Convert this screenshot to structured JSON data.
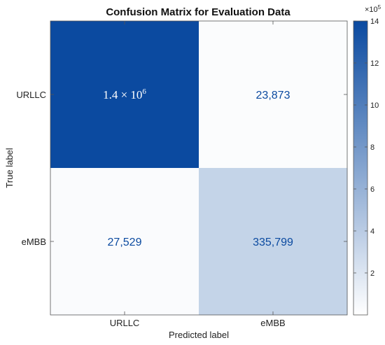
{
  "chart_data": {
    "type": "heatmap",
    "title": "Confusion Matrix for Evaluation Data",
    "xlabel": "Predicted label",
    "ylabel": "True label",
    "x_categories": [
      "URLLC",
      "eMBB"
    ],
    "y_categories": [
      "URLLC",
      "eMBB"
    ],
    "values": [
      [
        1400000,
        23873
      ],
      [
        27529,
        335799
      ]
    ],
    "cell_labels": [
      [
        "1.4 × 10",
        "23,873"
      ],
      [
        "27,529",
        "335,799"
      ]
    ],
    "cell_label_exponent": "6",
    "colorbar": {
      "range": [
        0,
        1400000
      ],
      "multiplier_base": "×10",
      "multiplier_exp": "5",
      "ticks": [
        "2",
        "4",
        "6",
        "8",
        "10",
        "12",
        "14"
      ],
      "tick_values": [
        200000,
        400000,
        600000,
        800000,
        1000000,
        1200000,
        1400000
      ]
    },
    "colors": {
      "low": "#ffffff",
      "high": "#0b4aa0",
      "dark_text": "#ffffff",
      "light_text": "#0b4aa0"
    }
  }
}
